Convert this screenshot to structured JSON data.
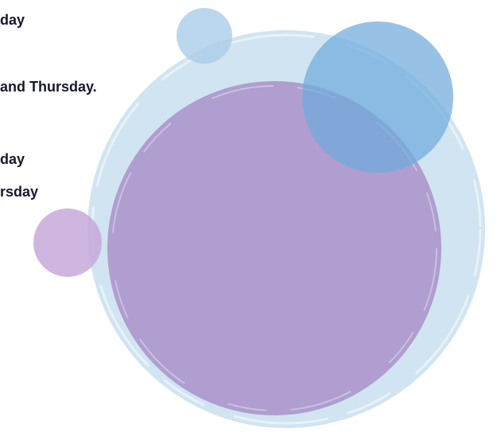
{
  "lines": [
    "day",
    "and Thursday.",
    "day",
    "rsday"
  ]
}
